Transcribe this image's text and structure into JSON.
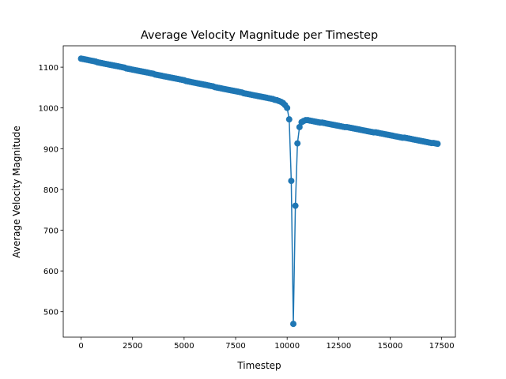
{
  "chart_data": {
    "type": "line",
    "title": "Average Velocity Magnitude per Timestep",
    "x_label": "Timestep",
    "y_label": "Average Velocity Magnitude",
    "x": [
      0,
      100,
      200,
      300,
      400,
      500,
      600,
      700,
      800,
      900,
      1000,
      1100,
      1200,
      1300,
      1400,
      1500,
      1600,
      1700,
      1800,
      1900,
      2000,
      2100,
      2200,
      2300,
      2400,
      2500,
      2600,
      2700,
      2800,
      2900,
      3000,
      3100,
      3200,
      3300,
      3400,
      3500,
      3600,
      3700,
      3800,
      3900,
      4000,
      4100,
      4200,
      4300,
      4400,
      4500,
      4600,
      4700,
      4800,
      4900,
      5000,
      5100,
      5200,
      5300,
      5400,
      5500,
      5600,
      5700,
      5800,
      5900,
      6000,
      6100,
      6200,
      6300,
      6400,
      6500,
      6600,
      6700,
      6800,
      6900,
      7000,
      7100,
      7200,
      7300,
      7400,
      7500,
      7600,
      7700,
      7800,
      7900,
      8000,
      8100,
      8200,
      8300,
      8400,
      8500,
      8600,
      8700,
      8800,
      8900,
      9000,
      9100,
      9200,
      9300,
      9400,
      9500,
      9600,
      9700,
      9800,
      9900,
      10000,
      10100,
      10200,
      10300,
      10400,
      10500,
      10600,
      10700,
      10800,
      10900,
      11000,
      11100,
      11200,
      11300,
      11400,
      11500,
      11600,
      11700,
      11800,
      11900,
      12000,
      12100,
      12200,
      12300,
      12400,
      12500,
      12600,
      12700,
      12800,
      12900,
      13000,
      13100,
      13200,
      13300,
      13400,
      13500,
      13600,
      13700,
      13800,
      13900,
      14000,
      14100,
      14200,
      14300,
      14400,
      14500,
      14600,
      14700,
      14800,
      14900,
      15000,
      15100,
      15200,
      15300,
      15400,
      15500,
      15600,
      15700,
      15800,
      15900,
      16000,
      16100,
      16200,
      16300,
      16400,
      16500,
      16600,
      16700,
      16800,
      16900,
      17000,
      17100,
      17200,
      17300
    ],
    "series": [
      {
        "color": "#1f77b4",
        "values": [
          1121,
          1120,
          1119,
          1118,
          1117,
          1116,
          1115,
          1114,
          1112,
          1111,
          1110,
          1109,
          1108,
          1107,
          1106,
          1105,
          1104,
          1103,
          1102,
          1101,
          1100,
          1099,
          1097,
          1096,
          1095,
          1094,
          1093,
          1092,
          1091,
          1090,
          1089,
          1088,
          1087,
          1086,
          1085,
          1084,
          1082,
          1081,
          1080,
          1079,
          1078,
          1077,
          1076,
          1075,
          1074,
          1073,
          1072,
          1071,
          1070,
          1069,
          1068,
          1066,
          1065,
          1064,
          1063,
          1062,
          1061,
          1060,
          1059,
          1058,
          1057,
          1056,
          1055,
          1054,
          1053,
          1051,
          1050,
          1049,
          1048,
          1047,
          1046,
          1045,
          1044,
          1043,
          1042,
          1041,
          1040,
          1039,
          1038,
          1036,
          1035,
          1034,
          1033,
          1032,
          1031,
          1030,
          1029,
          1028,
          1027,
          1026,
          1025,
          1024,
          1023,
          1022,
          1020,
          1019,
          1017,
          1015,
          1012,
          1007,
          1000,
          972,
          821,
          470,
          760,
          913,
          953,
          965,
          968,
          970,
          970,
          969,
          968,
          967,
          966,
          965,
          964,
          964,
          963,
          962,
          961,
          960,
          959,
          958,
          957,
          956,
          955,
          954,
          953,
          953,
          952,
          951,
          950,
          949,
          948,
          947,
          946,
          945,
          944,
          943,
          942,
          941,
          940,
          940,
          939,
          938,
          937,
          936,
          935,
          934,
          933,
          932,
          931,
          930,
          929,
          928,
          927,
          927,
          926,
          925,
          924,
          923,
          922,
          921,
          920,
          919,
          918,
          917,
          916,
          915,
          914,
          914,
          913,
          912
        ]
      }
    ],
    "xlim": [
      -865,
      18165
    ],
    "xticks": [
      0,
      2500,
      5000,
      7500,
      10000,
      12500,
      15000,
      17500
    ],
    "ylim": [
      437.5,
      1152.5
    ],
    "yticks": [
      500,
      600,
      700,
      800,
      900,
      1000,
      1100
    ]
  }
}
